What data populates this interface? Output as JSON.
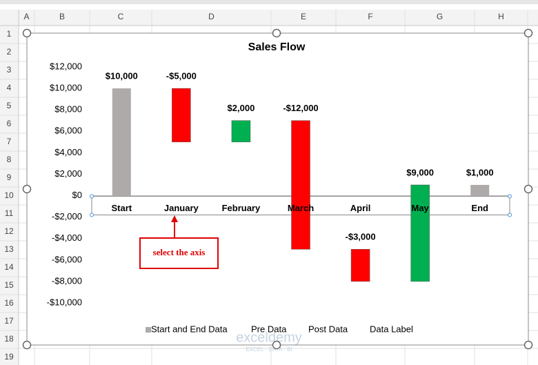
{
  "spreadsheet": {
    "columns": [
      "A",
      "B",
      "C",
      "D",
      "E",
      "F",
      "G",
      "H"
    ],
    "rows": [
      1,
      2,
      3,
      4,
      5,
      6,
      7,
      8,
      9,
      10,
      11,
      12,
      13,
      14,
      15,
      16,
      17,
      18,
      19
    ]
  },
  "chart_data": {
    "type": "waterfall",
    "title": "Sales Flow",
    "categories": [
      "Start",
      "January",
      "February",
      "March",
      "April",
      "May",
      "End"
    ],
    "values": [
      10000,
      -5000,
      2000,
      -12000,
      -3000,
      9000,
      1000
    ],
    "value_labels": [
      "$10,000",
      "-$5,000",
      "$2,000",
      "-$12,000",
      "-$3,000",
      "$9,000",
      "$1,000"
    ],
    "is_total": [
      true,
      false,
      false,
      false,
      false,
      false,
      true
    ],
    "total_color": "#aeaaaa",
    "increase_color": "#00b050",
    "decrease_color": "#ff0000",
    "ylim": [
      -10000,
      12000
    ],
    "yticks": [
      {
        "value": -10000,
        "label": "-$10,000"
      },
      {
        "value": -8000,
        "label": "-$8,000"
      },
      {
        "value": -6000,
        "label": "-$6,000"
      },
      {
        "value": -4000,
        "label": "-$4,000"
      },
      {
        "value": -2000,
        "label": "-$2,000"
      },
      {
        "value": 0,
        "label": "$0"
      },
      {
        "value": 2000,
        "label": "$2,000"
      },
      {
        "value": 4000,
        "label": "$4,000"
      },
      {
        "value": 6000,
        "label": "$6,000"
      },
      {
        "value": 8000,
        "label": "$8,000"
      },
      {
        "value": 10000,
        "label": "$10,000"
      },
      {
        "value": 12000,
        "label": "$12,000"
      }
    ],
    "grid": false,
    "legend": [
      {
        "name": "Start and End Data",
        "color": "#aeaaaa"
      },
      {
        "name": "Pre Data"
      },
      {
        "name": "Post Data"
      },
      {
        "name": "Data Label"
      }
    ],
    "legend_position": "bottom",
    "annotation": "select the axis"
  },
  "watermark": {
    "brand": "exceldemy",
    "tagline": "EXCEL · DATA · BI"
  }
}
